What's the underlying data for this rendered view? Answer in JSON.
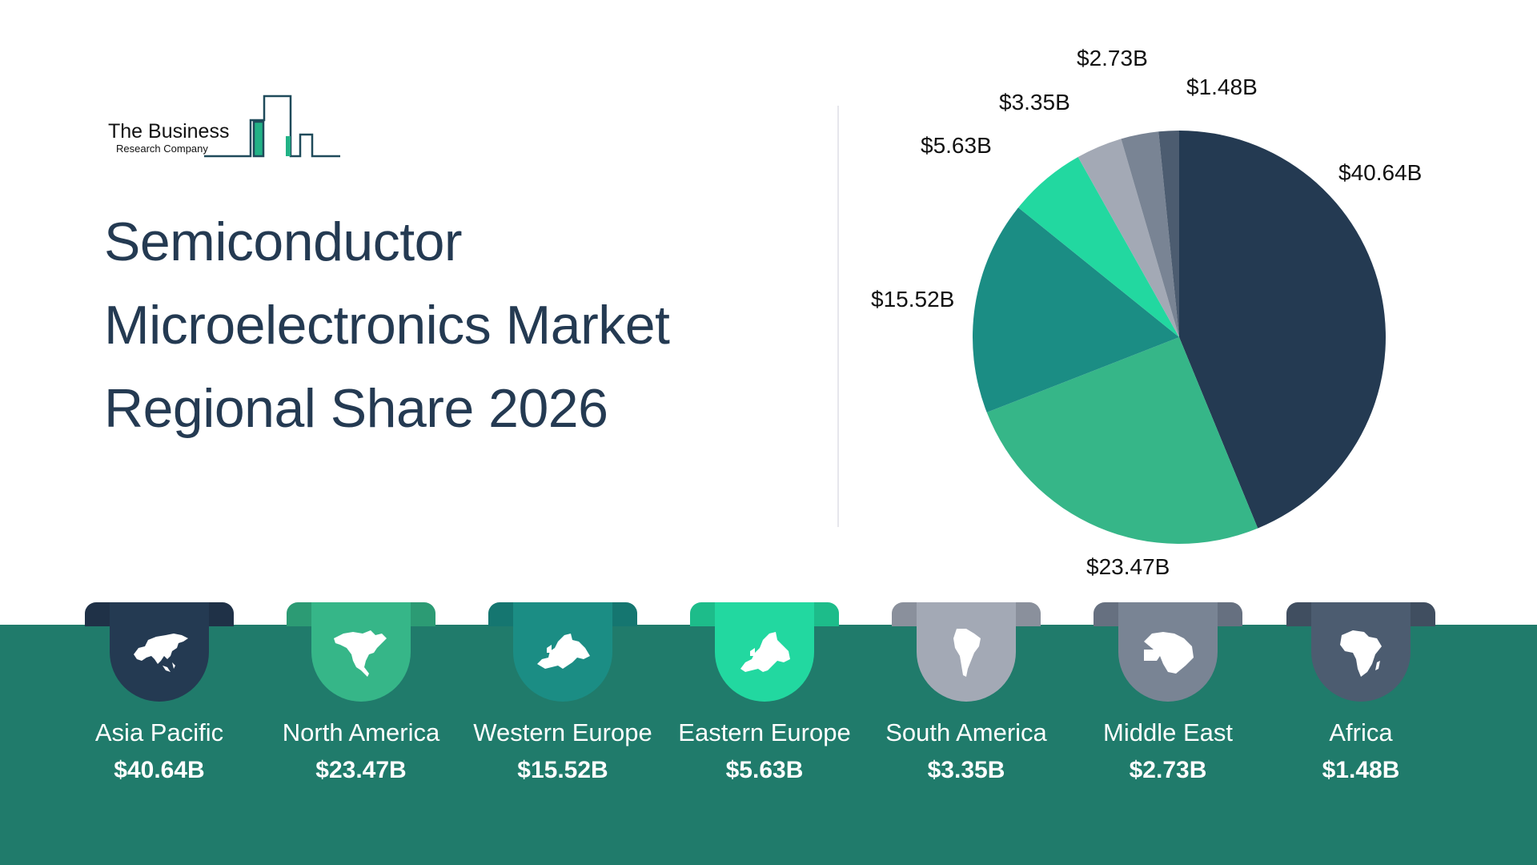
{
  "logo": {
    "line1": "The Business",
    "line2": "Research Company"
  },
  "title": {
    "lines": [
      "Semiconductor",
      "Microelectronics Market",
      "Regional Share 2026"
    ]
  },
  "colors": {
    "band": "#207b6b",
    "title": "#243a52"
  },
  "chart_data": {
    "type": "pie",
    "title": "Semiconductor Microelectronics Market Regional Share 2026",
    "unit": "USD billions",
    "start_angle": "12 o'clock, clockwise",
    "categories": [
      "Asia Pacific",
      "North America",
      "Western Europe",
      "Eastern Europe",
      "South America",
      "Middle East",
      "Africa"
    ],
    "values": [
      40.64,
      23.47,
      15.52,
      5.63,
      3.35,
      2.73,
      1.48
    ],
    "labels": [
      "$40.64B",
      "$23.47B",
      "$15.52B",
      "$5.63B",
      "$3.35B",
      "$2.73B",
      "$1.48B"
    ],
    "colors": [
      "#243a52",
      "#36b688",
      "#1b8d84",
      "#22d8a0",
      "#a3a9b5",
      "#798494",
      "#4c5c70"
    ],
    "legend": "none (region badges below chart)"
  },
  "regions": [
    {
      "name": "Asia Pacific",
      "value": "$40.64B",
      "icon": "asia-map-icon",
      "color": "#243a52",
      "tab": "#1f3147"
    },
    {
      "name": "North America",
      "value": "$23.47B",
      "icon": "north-america-map-icon",
      "color": "#36b688",
      "tab": "#2c9b74"
    },
    {
      "name": "Western Europe",
      "value": "$15.52B",
      "icon": "western-europe-map-icon",
      "color": "#1b8d84",
      "tab": "#157670"
    },
    {
      "name": "Eastern Europe",
      "value": "$5.63B",
      "icon": "eastern-europe-map-icon",
      "color": "#22d8a0",
      "tab": "#1dbc8a"
    },
    {
      "name": "South America",
      "value": "$3.35B",
      "icon": "south-america-map-icon",
      "color": "#a3a9b5",
      "tab": "#8a909c"
    },
    {
      "name": "Middle East",
      "value": "$2.73B",
      "icon": "middle-east-map-icon",
      "color": "#798494",
      "tab": "#667080"
    },
    {
      "name": "Africa",
      "value": "$1.48B",
      "icon": "africa-map-icon",
      "color": "#4c5c70",
      "tab": "#404e60"
    }
  ]
}
